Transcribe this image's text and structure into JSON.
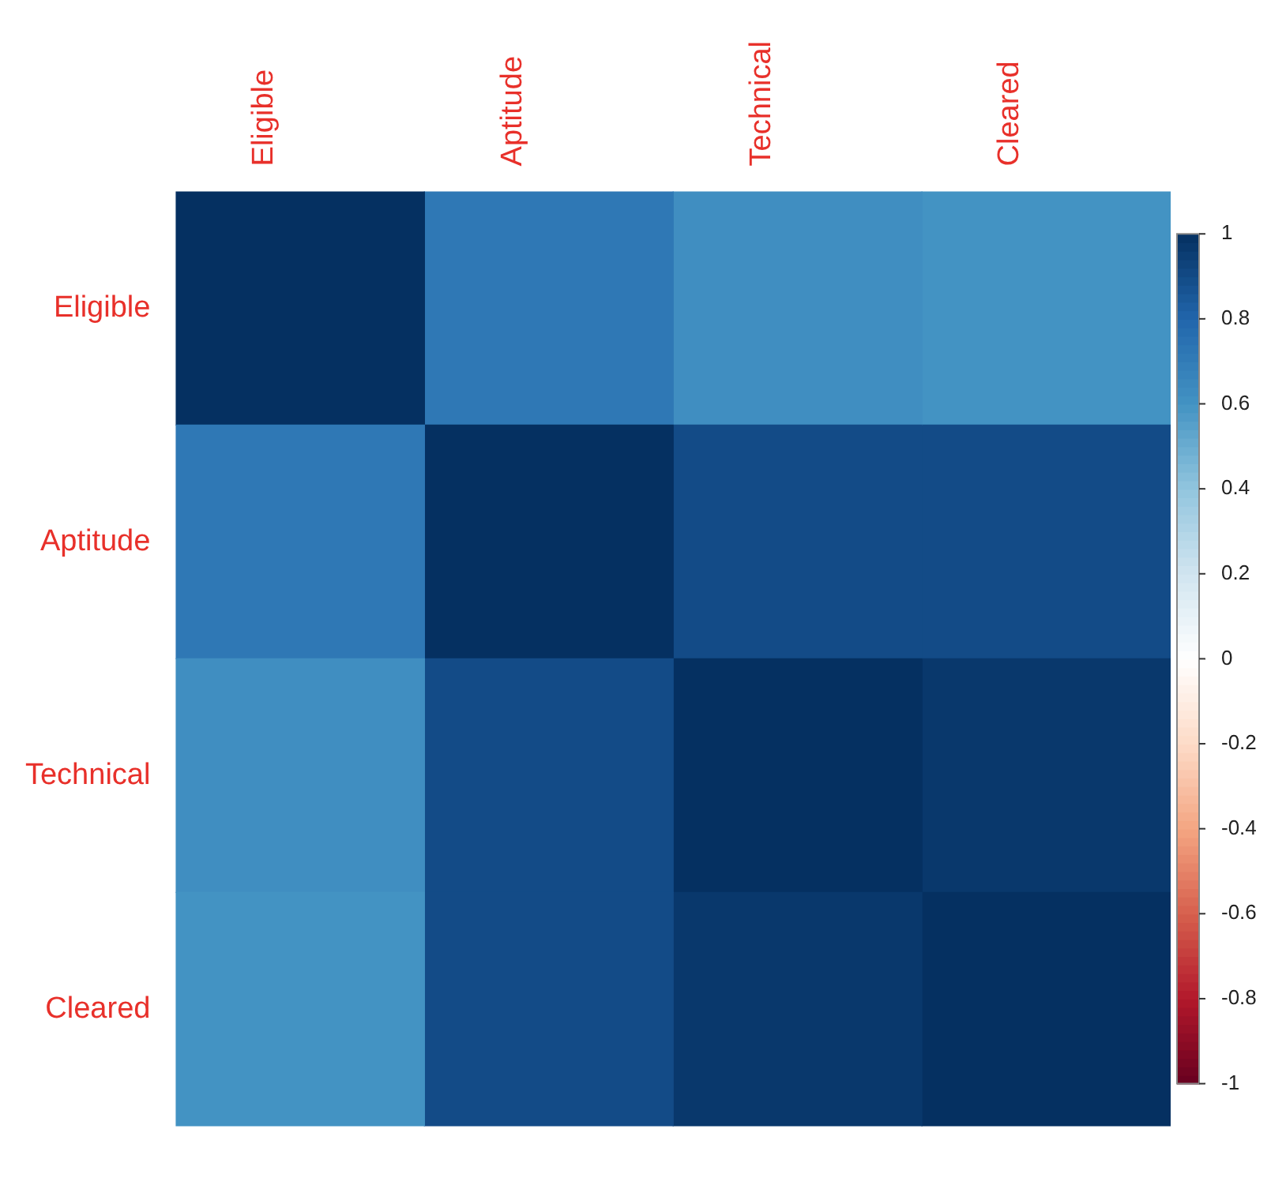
{
  "chart_data": {
    "type": "heatmap",
    "categories": [
      "Eligible",
      "Aptitude",
      "Technical",
      "Cleared"
    ],
    "y_categories": [
      "Eligible",
      "Aptitude",
      "Technical",
      "Cleared"
    ],
    "cells": [
      [
        1,
        0.72,
        0.62,
        0.6
      ],
      [
        0.72,
        1,
        0.9,
        0.9
      ],
      [
        0.62,
        0.9,
        1,
        0.97
      ],
      [
        0.6,
        0.9,
        0.97,
        1
      ]
    ],
    "clim": [
      -1,
      1
    ],
    "cticks": [
      -1,
      -0.8,
      -0.6,
      -0.4,
      -0.2,
      0,
      0.2,
      0.4,
      0.6,
      0.8,
      1
    ]
  }
}
